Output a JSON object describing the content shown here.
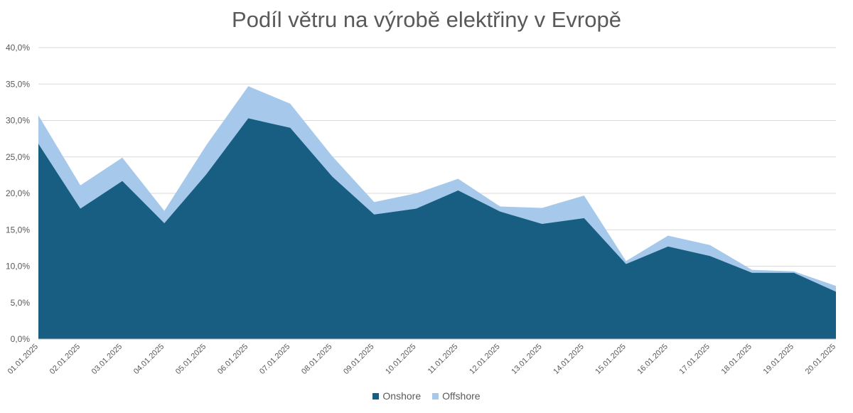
{
  "chart_data": {
    "type": "area",
    "stacked": true,
    "title": "Podíl větru na výrobě elektřiny v Evropě",
    "x": [
      "01.01.2025",
      "02.01.2025",
      "03.01.2025",
      "04.01.2025",
      "05.01.2025",
      "06.01.2025",
      "07.01.2025",
      "08.01.2025",
      "09.01.2025",
      "10.01.2025",
      "11.01.2025",
      "12.01.2025",
      "13.01.2025",
      "14.01.2025",
      "15.01.2025",
      "16.01.2025",
      "17.01.2025",
      "18.01.2025",
      "19.01.2025",
      "20.01.2025"
    ],
    "series": [
      {
        "name": "Onshore",
        "color": "#175E82",
        "values": [
          26.8,
          17.9,
          21.7,
          15.9,
          22.6,
          30.3,
          29.0,
          22.3,
          17.1,
          17.9,
          20.4,
          17.5,
          15.8,
          16.6,
          10.3,
          12.7,
          11.4,
          9.1,
          9.1,
          6.5
        ]
      },
      {
        "name": "Offshore",
        "color": "#A6C8EA",
        "values": [
          3.9,
          3.2,
          3.2,
          1.7,
          4.0,
          4.4,
          3.3,
          2.8,
          1.7,
          2.1,
          1.6,
          0.7,
          2.2,
          3.1,
          0.4,
          1.5,
          1.5,
          0.4,
          0.2,
          0.8
        ]
      }
    ],
    "ylim": [
      0,
      40
    ],
    "yticks": [
      "0,0%",
      "5,0%",
      "10,0%",
      "15,0%",
      "20,0%",
      "25,0%",
      "30,0%",
      "35,0%",
      "40,0%"
    ],
    "grid": true,
    "legend_position": "bottom"
  }
}
